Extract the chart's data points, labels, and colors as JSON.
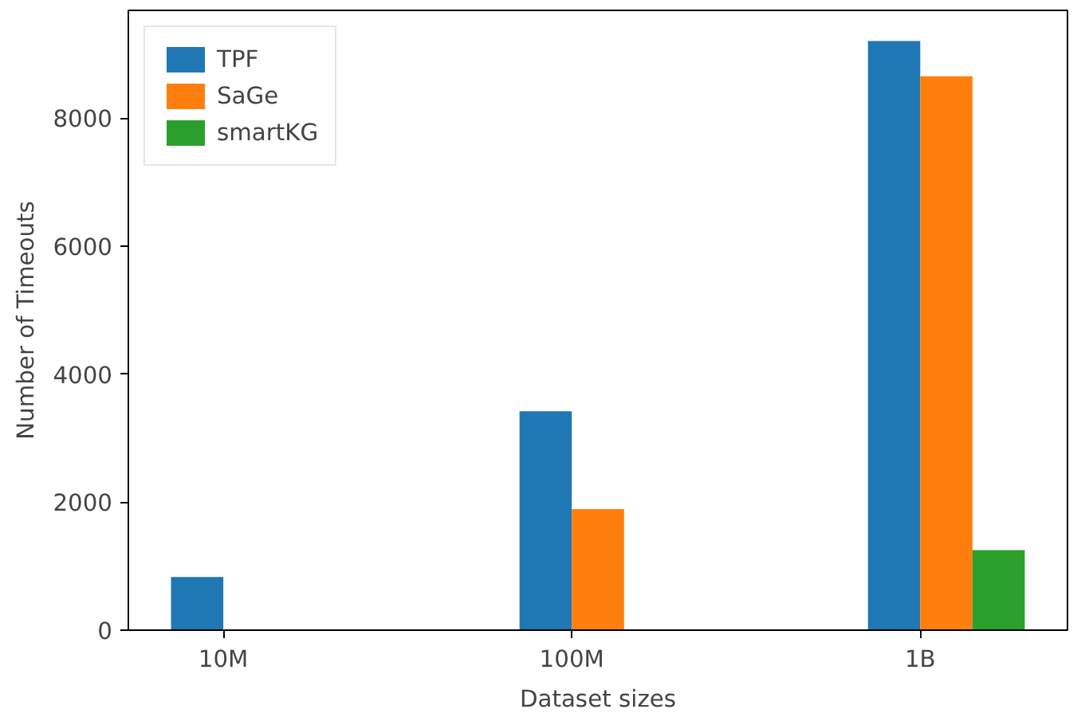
{
  "chart_data": {
    "type": "bar",
    "xlabel": "Dataset sizes",
    "ylabel": "Number of Timeouts",
    "categories": [
      "10M",
      "100M",
      "1B"
    ],
    "series": [
      {
        "name": "TPF",
        "color": "#1f77b4",
        "values": [
          830,
          3420,
          9200
        ]
      },
      {
        "name": "SaGe",
        "color": "#ff7f0e",
        "values": [
          0,
          1890,
          8650
        ]
      },
      {
        "name": "smartKG",
        "color": "#2ca02c",
        "values": [
          0,
          0,
          1250
        ]
      }
    ],
    "ylim": [
      0,
      9680
    ],
    "yticks": [
      0,
      2000,
      4000,
      6000,
      8000
    ],
    "grid": false,
    "legend": "top left"
  }
}
